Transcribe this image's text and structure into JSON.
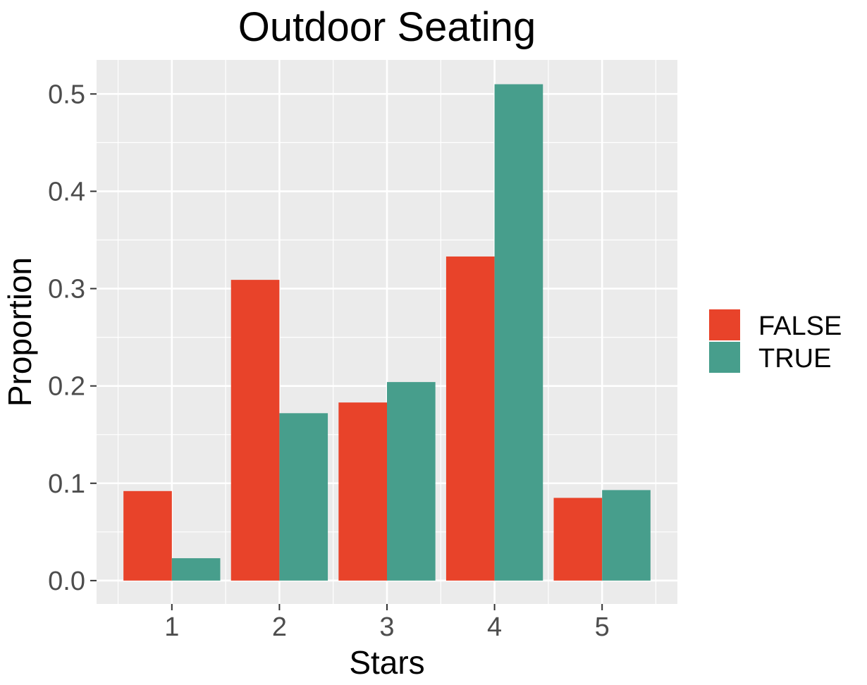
{
  "chart_data": {
    "type": "bar",
    "title": "Outdoor Seating",
    "xlabel": "Stars",
    "ylabel": "Proportion",
    "categories": [
      "1",
      "2",
      "3",
      "4",
      "5"
    ],
    "series": [
      {
        "name": "FALSE",
        "color": "#E8432A",
        "values": [
          0.092,
          0.309,
          0.183,
          0.333,
          0.085
        ]
      },
      {
        "name": "TRUE",
        "color": "#479E8C",
        "values": [
          0.023,
          0.172,
          0.204,
          0.51,
          0.093
        ]
      }
    ],
    "ylim": [
      -0.024,
      0.535
    ],
    "yticks": [
      0.0,
      0.1,
      0.2,
      0.3,
      0.4,
      0.5
    ],
    "ytick_labels": [
      "0.0",
      "0.1",
      "0.2",
      "0.3",
      "0.4",
      "0.5"
    ],
    "grid": true,
    "panel_background": "#EBEBEB",
    "legend_position": "right"
  }
}
